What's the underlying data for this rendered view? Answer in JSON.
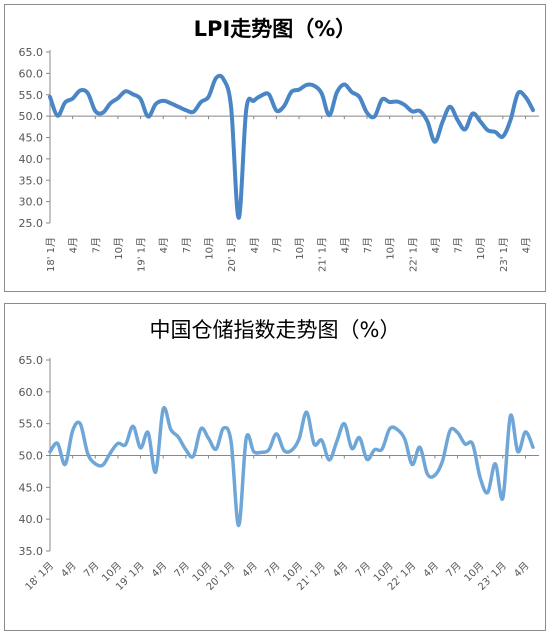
{
  "chart_data": [
    {
      "type": "line",
      "title": "LPI走势图（%）",
      "ylim": [
        25,
        65
      ],
      "yticks": [
        "25.0",
        "30.0",
        "35.0",
        "40.0",
        "45.0",
        "50.0",
        "55.0",
        "60.0",
        "65.0"
      ],
      "xtick_labels": [
        "18' 1月",
        "4月",
        "7月",
        "10月",
        "19' 1月",
        "4月",
        "7月",
        "10月",
        "20' 1月",
        "4月",
        "7月",
        "10月",
        "21' 1月",
        "4月",
        "7月",
        "10月",
        "22' 1月",
        "4月",
        "7月",
        "10月",
        "23' 1月",
        "4月"
      ],
      "grid": false,
      "line_color": "#4a86c5",
      "series": [
        {
          "values": [
            54.5,
            50.1,
            53.2,
            54.1,
            56.0,
            55.4,
            51.2,
            50.8,
            53.0,
            54.2,
            55.8,
            55.1,
            54.0,
            49.9,
            52.8,
            53.6,
            53.0,
            52.2,
            51.4,
            51.0,
            53.3,
            54.5,
            58.9,
            58.6,
            52.0,
            26.2,
            51.5,
            53.6,
            54.8,
            55.1,
            51.3,
            52.3,
            55.7,
            56.2,
            57.3,
            57.1,
            55.3,
            50.2,
            55.5,
            57.4,
            55.6,
            54.5,
            50.8,
            49.9,
            53.9,
            53.3,
            53.4,
            52.6,
            51.1,
            51.2,
            48.8,
            44.0,
            48.6,
            52.2,
            49.1,
            46.9,
            50.6,
            48.8,
            46.7,
            46.3,
            45.2,
            49.0,
            55.3,
            54.5,
            51.4
          ]
        }
      ]
    },
    {
      "type": "line",
      "title": "中国仓储指数走势图（%）",
      "ylim": [
        35,
        65
      ],
      "yticks": [
        "35.0",
        "40.0",
        "45.0",
        "50.0",
        "55.0",
        "60.0",
        "65.0"
      ],
      "xtick_labels": [
        "18' 1月",
        "4月",
        "7月",
        "10月",
        "19' 1月",
        "4月",
        "7月",
        "10月",
        "20' 1月",
        "4月",
        "7月",
        "10月",
        "21' 1月",
        "4月",
        "7月",
        "10月",
        "22' 1月",
        "4月",
        "7月",
        "10月",
        "23' 1月",
        "4月"
      ],
      "grid": false,
      "line_color": "#6fa6d8",
      "series": [
        {
          "values": [
            50.6,
            51.9,
            48.6,
            53.9,
            55.0,
            50.3,
            48.7,
            48.5,
            50.4,
            51.9,
            51.7,
            54.6,
            51.2,
            53.6,
            47.4,
            57.3,
            54.1,
            52.9,
            50.9,
            49.9,
            54.2,
            52.7,
            51.0,
            54.3,
            52.1,
            39.0,
            52.7,
            50.6,
            50.5,
            50.9,
            53.4,
            50.8,
            50.8,
            52.6,
            56.8,
            51.8,
            52.4,
            49.3,
            52.2,
            55.0,
            51.1,
            52.8,
            49.4,
            50.9,
            51.0,
            54.2,
            54.1,
            52.6,
            48.6,
            51.3,
            47.1,
            46.9,
            49.1,
            53.9,
            53.6,
            51.8,
            51.8,
            46.5,
            44.2,
            48.7,
            43.3,
            56.2,
            50.6,
            53.7,
            51.3
          ]
        }
      ]
    }
  ]
}
